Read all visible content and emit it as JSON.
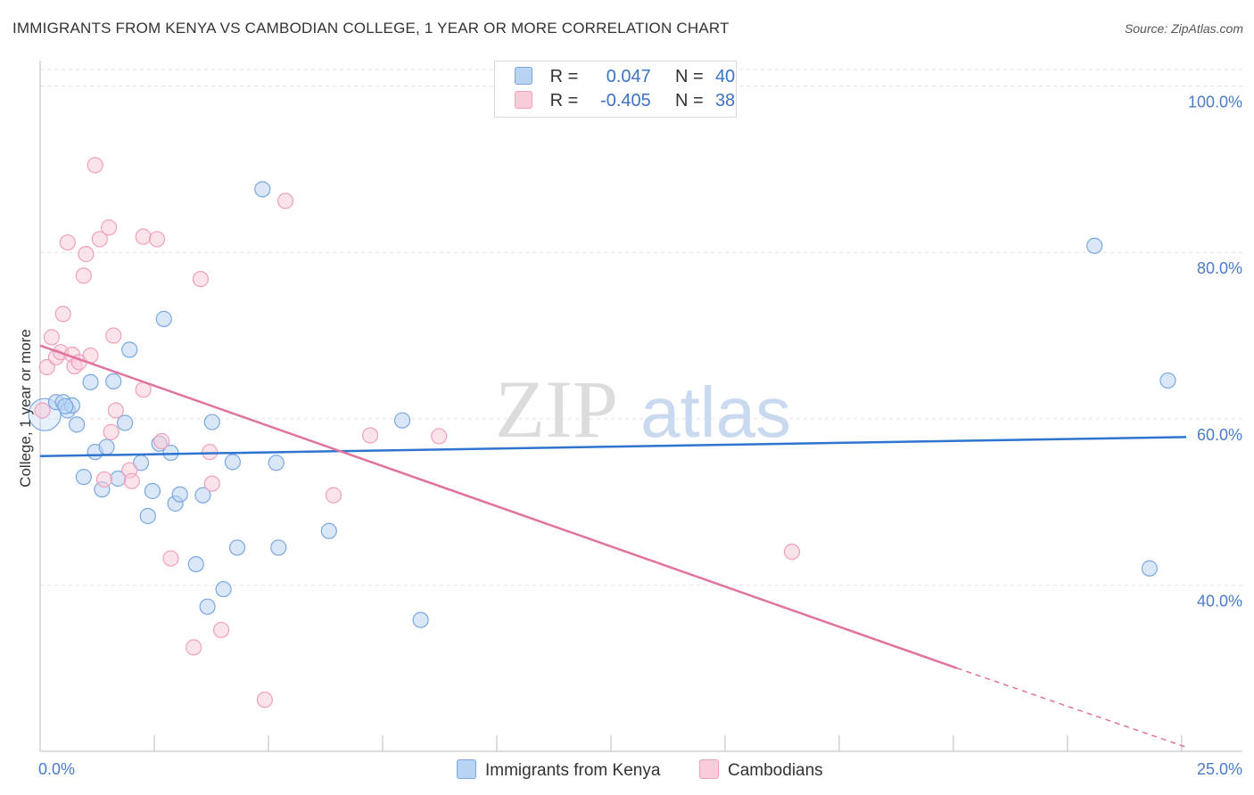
{
  "chart_data": {
    "type": "scatter",
    "title": "IMMIGRANTS FROM KENYA VS CAMBODIAN COLLEGE, 1 YEAR OR MORE CORRELATION CHART",
    "source": "Source: ZipAtlas.com",
    "xlabel": "",
    "ylabel": "College, 1 year or more",
    "xlim": [
      0,
      25
    ],
    "ylim": [
      20,
      102
    ],
    "x_tick_labels": [
      "0.0%",
      "25.0%"
    ],
    "y_ticks": [
      40,
      60,
      80,
      100
    ],
    "y_tick_labels": [
      "40.0%",
      "60.0%",
      "80.0%",
      "100.0%"
    ],
    "grid": true,
    "watermark": {
      "part1": "ZIP",
      "part2": "atlas"
    },
    "legend": {
      "rows": [
        {
          "r_label": "R =",
          "r_value": "0.047",
          "n_label": "N =",
          "n_value": "40"
        },
        {
          "r_label": "R =",
          "r_value": "-0.405",
          "n_label": "N =",
          "n_value": "38"
        }
      ]
    },
    "series": [
      {
        "name": "Immigrants from Kenya",
        "color": "#7aa8e0",
        "fill": "#b9d3f3",
        "line_color": "#2f74d0",
        "trend": {
          "x0": 0,
          "y0": 55.5,
          "x1": 25,
          "y1": 57.8
        },
        "points": [
          [
            0.1,
            60.5
          ],
          [
            0.35,
            62.0
          ],
          [
            0.5,
            62.0
          ],
          [
            0.6,
            61.0
          ],
          [
            0.7,
            61.6
          ],
          [
            0.8,
            59.3
          ],
          [
            0.95,
            53.0
          ],
          [
            1.1,
            64.4
          ],
          [
            1.2,
            56.0
          ],
          [
            1.35,
            51.5
          ],
          [
            1.45,
            56.6
          ],
          [
            1.6,
            64.5
          ],
          [
            1.7,
            52.8
          ],
          [
            1.85,
            59.5
          ],
          [
            1.95,
            68.3
          ],
          [
            2.2,
            54.7
          ],
          [
            2.35,
            48.3
          ],
          [
            2.45,
            51.3
          ],
          [
            2.6,
            57.0
          ],
          [
            2.7,
            72.0
          ],
          [
            2.85,
            55.9
          ],
          [
            2.95,
            49.8
          ],
          [
            3.05,
            50.9
          ],
          [
            3.4,
            42.5
          ],
          [
            3.55,
            50.8
          ],
          [
            3.65,
            37.4
          ],
          [
            3.75,
            59.6
          ],
          [
            4.0,
            39.5
          ],
          [
            4.2,
            54.8
          ],
          [
            4.3,
            44.5
          ],
          [
            4.85,
            87.6
          ],
          [
            5.15,
            54.7
          ],
          [
            5.2,
            44.5
          ],
          [
            6.3,
            46.5
          ],
          [
            7.9,
            59.8
          ],
          [
            8.3,
            35.8
          ],
          [
            23.0,
            80.8
          ],
          [
            24.2,
            42.0
          ],
          [
            24.6,
            64.6
          ],
          [
            0.55,
            61.5
          ]
        ]
      },
      {
        "name": "Cambodians",
        "color": "#f0a0bc",
        "fill": "#f8ccd9",
        "line_color": "#e0739e",
        "trend": {
          "x0": 0,
          "y0": 68.8,
          "x1": 20,
          "y1": 30.0,
          "dash_x1": 25,
          "dash_y1": 20.5
        },
        "points": [
          [
            0.05,
            61.0
          ],
          [
            0.15,
            66.2
          ],
          [
            0.25,
            69.8
          ],
          [
            0.35,
            67.4
          ],
          [
            0.45,
            68.0
          ],
          [
            0.5,
            72.6
          ],
          [
            0.6,
            81.2
          ],
          [
            0.7,
            67.7
          ],
          [
            0.75,
            66.3
          ],
          [
            0.85,
            66.8
          ],
          [
            0.95,
            77.2
          ],
          [
            1.0,
            79.8
          ],
          [
            1.1,
            67.6
          ],
          [
            1.3,
            81.6
          ],
          [
            1.5,
            83.0
          ],
          [
            1.55,
            58.4
          ],
          [
            1.6,
            70.0
          ],
          [
            1.65,
            61.0
          ],
          [
            1.4,
            52.7
          ],
          [
            1.95,
            53.8
          ],
          [
            2.0,
            52.5
          ],
          [
            2.25,
            63.5
          ],
          [
            2.25,
            81.9
          ],
          [
            2.55,
            81.6
          ],
          [
            2.65,
            57.3
          ],
          [
            2.85,
            43.2
          ],
          [
            3.35,
            32.5
          ],
          [
            3.5,
            76.8
          ],
          [
            3.7,
            56.0
          ],
          [
            3.75,
            52.2
          ],
          [
            3.95,
            34.6
          ],
          [
            4.9,
            26.2
          ],
          [
            5.35,
            86.2
          ],
          [
            6.4,
            50.8
          ],
          [
            7.2,
            58.0
          ],
          [
            8.7,
            57.9
          ],
          [
            16.4,
            44.0
          ],
          [
            1.2,
            90.5
          ]
        ]
      }
    ]
  }
}
